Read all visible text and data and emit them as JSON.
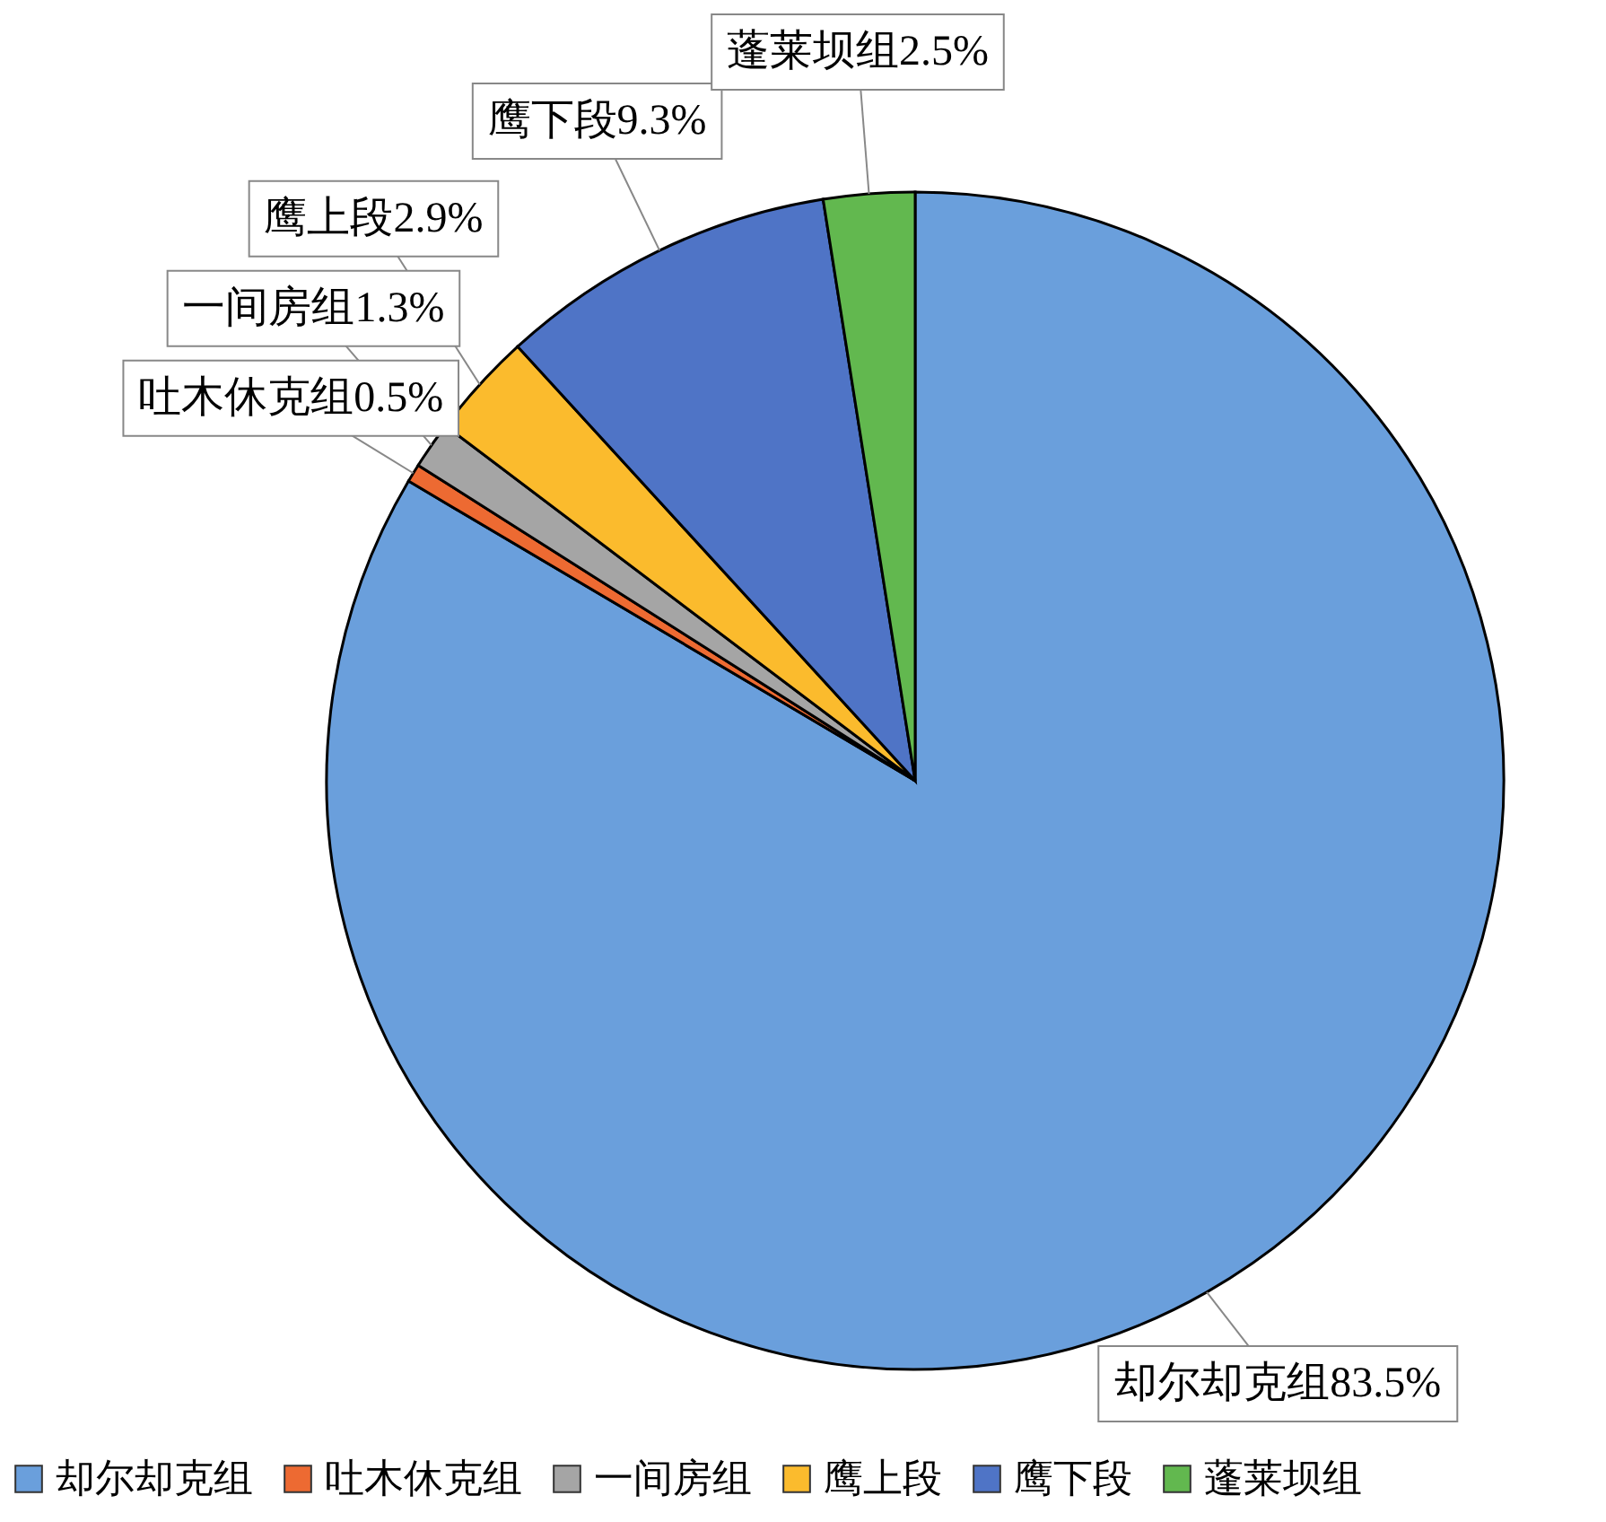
{
  "chart_data": {
    "type": "pie",
    "categories": [
      "却尔却克组",
      "吐木休克组",
      "一间房组",
      "鹰上段",
      "鹰下段",
      "蓬莱坝组"
    ],
    "values": [
      83.5,
      0.5,
      1.3,
      2.9,
      9.3,
      2.5
    ],
    "value_labels": [
      "83.5%",
      "0.5%",
      "1.3%",
      "2.9%",
      "9.3%",
      "2.5%"
    ],
    "colors": [
      "#6a9fdc",
      "#ed6a32",
      "#a5a5a5",
      "#fbbb2d",
      "#4f74c6",
      "#62b84f"
    ],
    "legend": "bottom"
  }
}
